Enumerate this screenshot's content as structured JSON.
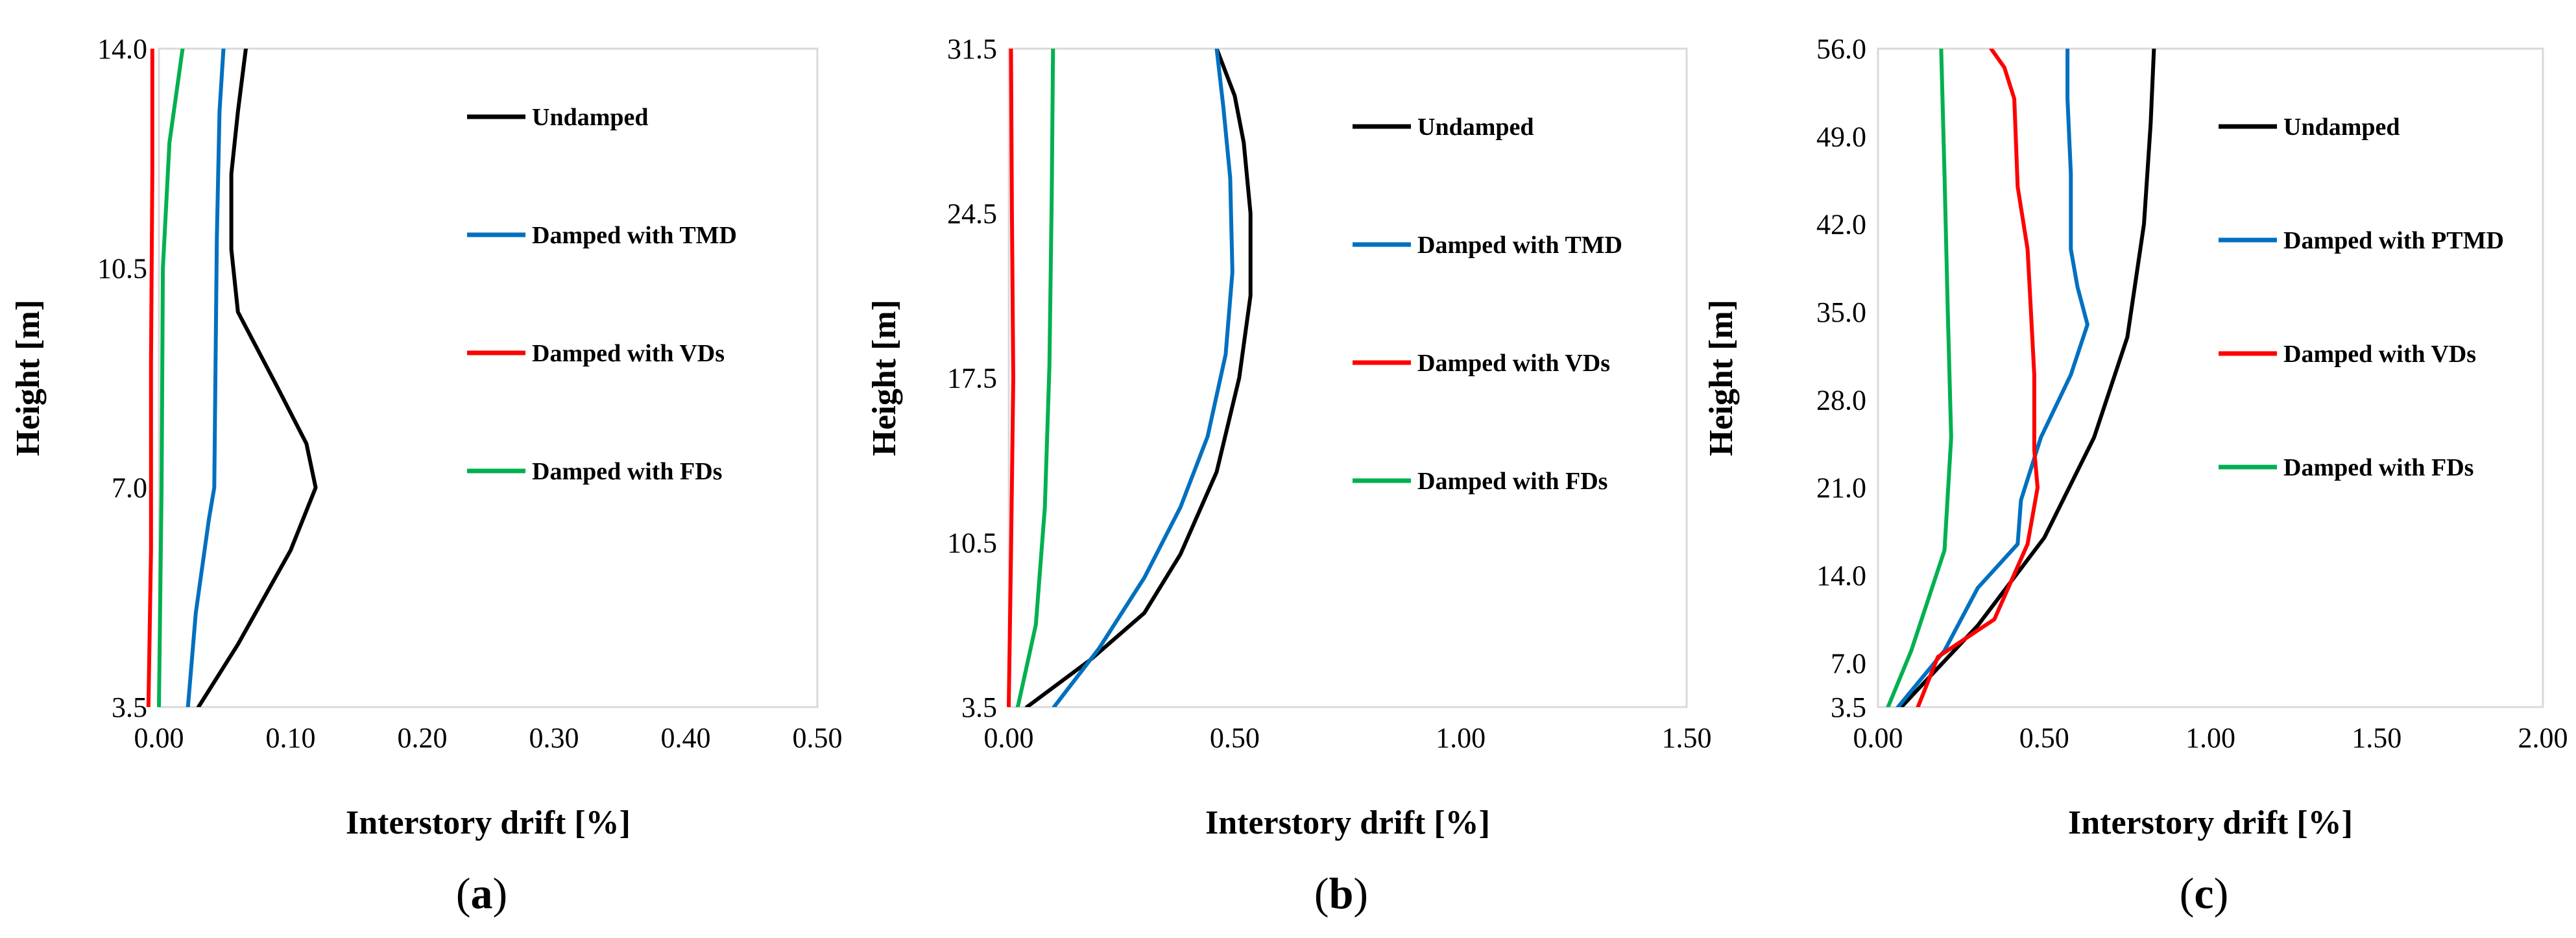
{
  "series_colors": {
    "Undamped": "#000000",
    "Damped with TMD": "#0070c0",
    "Damped with PTMD": "#0070c0",
    "Damped with VDs": "#ff0000",
    "Damped with FDs": "#00b050"
  },
  "chart_data": [
    {
      "type": "line",
      "panel_label": "(a)",
      "panel_letter": "a",
      "xlabel": "Interstory drift [%]",
      "ylabel": "Height [m]",
      "xlim": [
        0,
        0.5
      ],
      "ylim": [
        3.5,
        14.0
      ],
      "xticks": [
        "0.00",
        "0.10",
        "0.20",
        "0.30",
        "0.40",
        "0.50"
      ],
      "yticks": [
        {
          "v": 3.5,
          "label": "3.5"
        },
        {
          "v": 7.0,
          "label": "7.0"
        },
        {
          "v": 10.5,
          "label": "10.5"
        },
        {
          "v": 14.0,
          "label": "14.0"
        }
      ],
      "legend_position": "top-right",
      "series": [
        {
          "name": "Undamped",
          "points": [
            [
              0.03,
              3.5
            ],
            [
              0.06,
              4.5
            ],
            [
              0.1,
              6.0
            ],
            [
              0.119,
              7.0
            ],
            [
              0.112,
              7.7
            ],
            [
              0.09,
              8.6
            ],
            [
              0.06,
              9.8
            ],
            [
              0.055,
              10.8
            ],
            [
              0.055,
              12.0
            ],
            [
              0.06,
              13.0
            ],
            [
              0.066,
              14.0
            ]
          ]
        },
        {
          "name": "Damped with TMD",
          "points": [
            [
              0.022,
              3.5
            ],
            [
              0.028,
              5.0
            ],
            [
              0.038,
              6.5
            ],
            [
              0.042,
              7.0
            ],
            [
              0.043,
              9.0
            ],
            [
              0.044,
              11.0
            ],
            [
              0.046,
              13.0
            ],
            [
              0.049,
              14.0
            ]
          ]
        },
        {
          "name": "Damped with VDs",
          "points": [
            [
              -0.008,
              3.5
            ],
            [
              -0.006,
              6.0
            ],
            [
              -0.006,
              9.0
            ],
            [
              -0.005,
              12.0
            ],
            [
              -0.005,
              14.0
            ]
          ]
        },
        {
          "name": "Damped with FDs",
          "points": [
            [
              0.0,
              3.5
            ],
            [
              0.002,
              7.0
            ],
            [
              0.003,
              10.5
            ],
            [
              0.008,
              12.5
            ],
            [
              0.018,
              14.0
            ]
          ]
        }
      ]
    },
    {
      "type": "line",
      "panel_label": "(b)",
      "panel_letter": "b",
      "xlabel": "Interstory drift [%]",
      "ylabel": "Height [m]",
      "xlim": [
        0,
        1.5
      ],
      "ylim": [
        3.5,
        31.5
      ],
      "xticks": [
        "0.00",
        "0.50",
        "1.00",
        "1.50"
      ],
      "yticks": [
        {
          "v": 3.5,
          "label": "3.5"
        },
        {
          "v": 10.5,
          "label": "10.5"
        },
        {
          "v": 17.5,
          "label": "17.5"
        },
        {
          "v": 24.5,
          "label": "24.5"
        },
        {
          "v": 31.5,
          "label": "31.5"
        }
      ],
      "legend_position": "top-right",
      "series": [
        {
          "name": "Undamped",
          "points": [
            [
              0.04,
              3.5
            ],
            [
              0.18,
              5.5
            ],
            [
              0.3,
              7.5
            ],
            [
              0.38,
              10.0
            ],
            [
              0.46,
              13.5
            ],
            [
              0.51,
              17.5
            ],
            [
              0.535,
              21.0
            ],
            [
              0.535,
              24.5
            ],
            [
              0.52,
              27.5
            ],
            [
              0.5,
              29.5
            ],
            [
              0.46,
              31.5
            ]
          ]
        },
        {
          "name": "Damped with TMD",
          "points": [
            [
              0.1,
              3.5
            ],
            [
              0.2,
              6.0
            ],
            [
              0.3,
              9.0
            ],
            [
              0.38,
              12.0
            ],
            [
              0.44,
              15.0
            ],
            [
              0.48,
              18.5
            ],
            [
              0.495,
              22.0
            ],
            [
              0.49,
              26.0
            ],
            [
              0.475,
              29.0
            ],
            [
              0.46,
              31.5
            ]
          ]
        },
        {
          "name": "Damped with VDs",
          "points": [
            [
              0.0,
              3.5
            ],
            [
              0.005,
              10.0
            ],
            [
              0.01,
              17.5
            ],
            [
              0.007,
              24.5
            ],
            [
              0.005,
              31.5
            ]
          ]
        },
        {
          "name": "Damped with FDs",
          "points": [
            [
              0.02,
              3.5
            ],
            [
              0.06,
              7.0
            ],
            [
              0.08,
              12.0
            ],
            [
              0.09,
              18.0
            ],
            [
              0.095,
              25.0
            ],
            [
              0.098,
              31.5
            ]
          ]
        }
      ]
    },
    {
      "type": "line",
      "panel_label": "(c)",
      "panel_letter": "c",
      "xlabel": "Interstory drift [%]",
      "ylabel": "Height [m]",
      "xlim": [
        0,
        2.0
      ],
      "ylim": [
        3.5,
        56.0
      ],
      "xticks": [
        "0.00",
        "0.50",
        "1.00",
        "1.50",
        "2.00"
      ],
      "yticks": [
        {
          "v": 3.5,
          "label": "3.5"
        },
        {
          "v": 7.0,
          "label": "7.0"
        },
        {
          "v": 14.0,
          "label": "14.0"
        },
        {
          "v": 21.0,
          "label": "21.0"
        },
        {
          "v": 28.0,
          "label": "28.0"
        },
        {
          "v": 35.0,
          "label": "35.0"
        },
        {
          "v": 42.0,
          "label": "42.0"
        },
        {
          "v": 49.0,
          "label": "49.0"
        },
        {
          "v": 56.0,
          "label": "56.0"
        }
      ],
      "legend_position": "top-right",
      "series": [
        {
          "name": "Undamped",
          "points": [
            [
              0.07,
              3.5
            ],
            [
              0.3,
              10.0
            ],
            [
              0.5,
              17.0
            ],
            [
              0.65,
              25.0
            ],
            [
              0.75,
              33.0
            ],
            [
              0.8,
              42.0
            ],
            [
              0.82,
              50.0
            ],
            [
              0.83,
              56.0
            ]
          ]
        },
        {
          "name": "Damped with PTMD",
          "points": [
            [
              0.06,
              3.5
            ],
            [
              0.2,
              8.0
            ],
            [
              0.3,
              13.0
            ],
            [
              0.42,
              16.5
            ],
            [
              0.43,
              20.0
            ],
            [
              0.49,
              25.0
            ],
            [
              0.58,
              30.0
            ],
            [
              0.63,
              34.0
            ],
            [
              0.6,
              37.0
            ],
            [
              0.58,
              40.0
            ],
            [
              0.58,
              46.0
            ],
            [
              0.57,
              52.0
            ],
            [
              0.57,
              56.0
            ]
          ]
        },
        {
          "name": "Damped with VDs",
          "points": [
            [
              0.12,
              3.5
            ],
            [
              0.18,
              7.5
            ],
            [
              0.35,
              10.5
            ],
            [
              0.45,
              16.5
            ],
            [
              0.48,
              21.0
            ],
            [
              0.47,
              24.0
            ],
            [
              0.47,
              30.0
            ],
            [
              0.46,
              35.0
            ],
            [
              0.45,
              40.0
            ],
            [
              0.42,
              45.0
            ],
            [
              0.41,
              52.0
            ],
            [
              0.38,
              54.5
            ],
            [
              0.34,
              56.0
            ]
          ]
        },
        {
          "name": "Damped with FDs",
          "points": [
            [
              0.03,
              3.5
            ],
            [
              0.1,
              8.0
            ],
            [
              0.2,
              16.0
            ],
            [
              0.22,
              25.0
            ],
            [
              0.21,
              35.0
            ],
            [
              0.2,
              46.0
            ],
            [
              0.19,
              56.0
            ]
          ]
        }
      ]
    }
  ]
}
